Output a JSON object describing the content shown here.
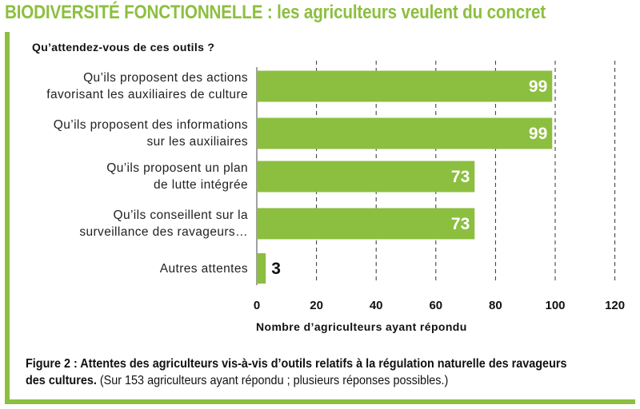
{
  "header": {
    "title": "BIODIVERSITÉ FONCTIONNELLE : les agriculteurs veulent du concret"
  },
  "colors": {
    "accent": "#8cbf3f",
    "bar": "#8cbf3f",
    "text": "#222222"
  },
  "chart_data": {
    "type": "bar",
    "orientation": "horizontal",
    "question": "Qu’attendez-vous de ces outils ?",
    "categories": [
      [
        "Qu’ils proposent des actions",
        "favorisant les auxiliaires de culture"
      ],
      [
        "Qu’ils proposent des informations",
        "sur les auxiliaires"
      ],
      [
        "Qu’ils proposent un plan",
        "de lutte intégrée"
      ],
      [
        "Qu’ils conseillent sur la",
        "surveillance des ravageurs…"
      ],
      [
        "Autres attentes"
      ]
    ],
    "values": [
      99,
      99,
      73,
      73,
      3
    ],
    "value_labels": [
      "99",
      "99",
      "73",
      "73",
      "3"
    ],
    "xlabel": "Nombre d’agriculteurs ayant répondu",
    "xlim": [
      0,
      120
    ],
    "xticks": [
      "0",
      "20",
      "40",
      "60",
      "80",
      "100",
      "120"
    ],
    "grid": "vertical dashed"
  },
  "caption": {
    "label": "Figure 2  : Attentes des agriculteurs vis-à-vis d’outils relatifs à la régulation naturelle des ravageurs des cultures.",
    "note": " (Sur 153 agriculteurs ayant répondu ; plusieurs réponses possibles.)"
  }
}
